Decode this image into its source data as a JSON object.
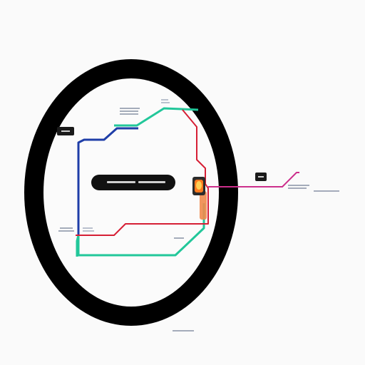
{
  "diagram": {
    "description_visible_text": [],
    "colors": {
      "background": "#fafafa",
      "ring": "#000000",
      "inner_fill": "#fbfbfb",
      "teal_line": "#22c79a",
      "blue_line": "#1f3ea8",
      "red_line": "#d61f35",
      "magenta_line": "#cc2f8c",
      "center_bar": "#111111",
      "small_tag": "#1a1a1a",
      "lamp_glow": "#ff7a1f",
      "lamp_core": "#ffcf55",
      "lamp_case": "#2b2b2b",
      "orange_strip": "#f08a4b"
    },
    "icons": {
      "lamp": "lamp-icon",
      "tag_left": "tag-icon",
      "tag_right": "tag-icon"
    }
  }
}
